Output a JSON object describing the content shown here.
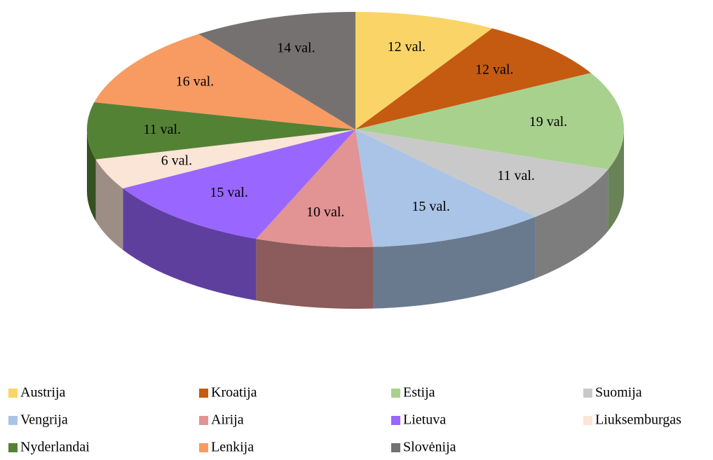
{
  "chart_data": {
    "type": "pie",
    "categories": [
      "Austrija",
      "Kroatija",
      "Estija",
      "Suomija",
      "Vengrija",
      "Airija",
      "Lietuva",
      "Liuksemburgas",
      "Nyderlandai",
      "Lenkija",
      "Slovėnija"
    ],
    "series": [
      {
        "values": [
          12,
          12,
          19,
          11,
          15,
          10,
          15,
          6,
          11,
          16,
          14
        ],
        "value_labels": [
          "12 val.",
          "12 val.",
          "19 val.",
          "11 val.",
          "15 val.",
          "10 val.",
          "15 val.",
          "6 val.",
          "11 val.",
          "16 val.",
          "14 val."
        ],
        "colors": [
          "#fad467",
          "#c55a11",
          "#a9d18e",
          "#c9c9c9",
          "#a9c4e6",
          "#e29393",
          "#9966ff",
          "#fbe5d6",
          "#548235",
          "#f79b63",
          "#767171"
        ]
      }
    ],
    "legend": "bottom"
  }
}
